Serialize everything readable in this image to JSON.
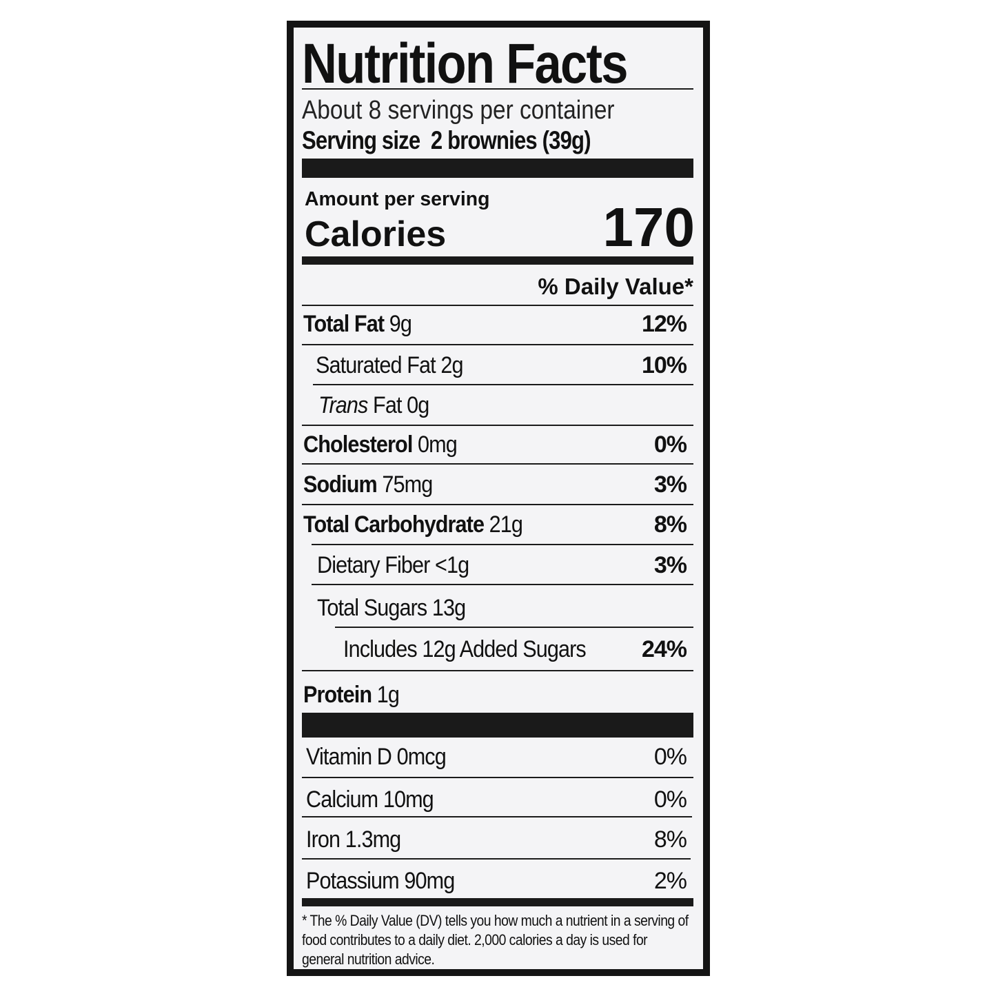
{
  "title": "Nutrition Facts",
  "servings_per_container": "About 8 servings per container",
  "serving_size_label": "Serving size",
  "serving_size_value": "2 brownies (39g)",
  "amount_per_serving": "Amount per serving",
  "calories_label": "Calories",
  "calories_value": "170",
  "daily_value_header": "% Daily Value*",
  "nutrients": [
    {
      "name": "Total Fat",
      "amount": "9g",
      "dv": "12%"
    },
    {
      "name": "Saturated Fat",
      "amount": "2g",
      "dv": "10%"
    },
    {
      "name": "Trans",
      "name_suffix": "Fat",
      "amount": "0g",
      "dv": ""
    },
    {
      "name": "Cholesterol",
      "amount": "0mg",
      "dv": "0%"
    },
    {
      "name": "Sodium",
      "amount": "75mg",
      "dv": "3%"
    },
    {
      "name": "Total Carbohydrate",
      "amount": "21g",
      "dv": "8%"
    },
    {
      "name": "Dietary Fiber",
      "amount": "<1g",
      "dv": "3%"
    },
    {
      "name": "Total Sugars",
      "amount": "13g",
      "dv": ""
    },
    {
      "name": "Includes 12g Added Sugars",
      "amount": "",
      "dv": "24%"
    },
    {
      "name": "Protein",
      "amount": "1g",
      "dv": ""
    }
  ],
  "vitamins": [
    {
      "name": "Vitamin D",
      "amount": "0mcg",
      "dv": "0%"
    },
    {
      "name": "Calcium",
      "amount": "10mg",
      "dv": "0%"
    },
    {
      "name": "Iron",
      "amount": "1.3mg",
      "dv": "8%"
    },
    {
      "name": "Potassium",
      "amount": "90mg",
      "dv": "2%"
    }
  ],
  "footnote": "* The % Daily Value (DV) tells you how much a nutrient in a serving of food contributes to a daily diet. 2,000 calories a day is used for general nutrition advice."
}
